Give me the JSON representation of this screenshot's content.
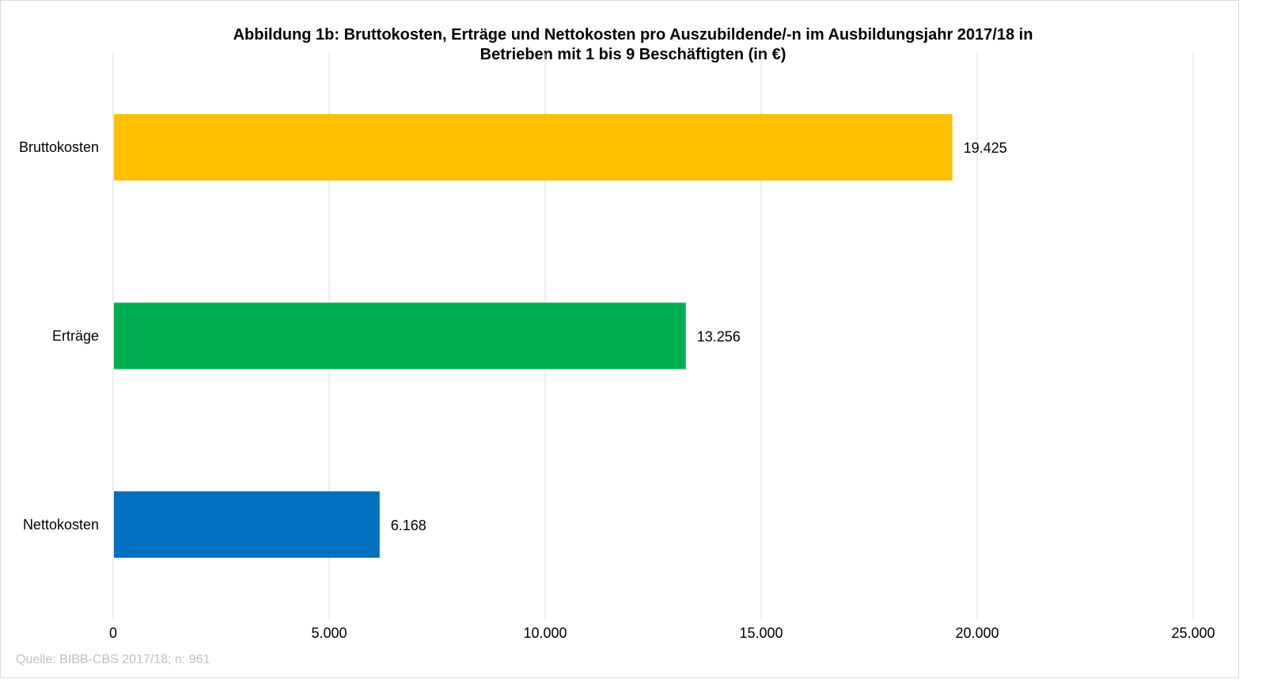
{
  "chart_data": {
    "type": "bar",
    "orientation": "horizontal",
    "title": "Abbildung 1b: Bruttokosten, Erträge und Nettokosten pro Auszubildende/-n im Ausbildungsjahr 2017/18  in Betrieben mit 1 bis 9 Beschäftigten (in €)",
    "title_lines": [
      "Abbildung 1b: Bruttokosten, Erträge und Nettokosten pro Auszubildende/-n im Ausbildungsjahr 2017/18  in",
      "Betrieben mit 1 bis 9 Beschäftigten (in €)"
    ],
    "categories": [
      "Bruttokosten",
      "Erträge",
      "Nettokosten"
    ],
    "values": [
      19425,
      13256,
      6168
    ],
    "value_labels": [
      "19.425",
      "13.256",
      "6.168"
    ],
    "colors": [
      "#FFC000",
      "#00B050",
      "#0070C0"
    ],
    "xlabel": "",
    "ylabel": "",
    "xlim": [
      0,
      25000
    ],
    "xticks": [
      0,
      5000,
      10000,
      15000,
      20000,
      25000
    ],
    "xtick_labels": [
      "0",
      "5.000",
      "10.000",
      "15.000",
      "20.000",
      "25.000"
    ],
    "grid": true,
    "legend": "none",
    "source": "Quelle: BIBB-CBS 2017/18; n: 961"
  }
}
